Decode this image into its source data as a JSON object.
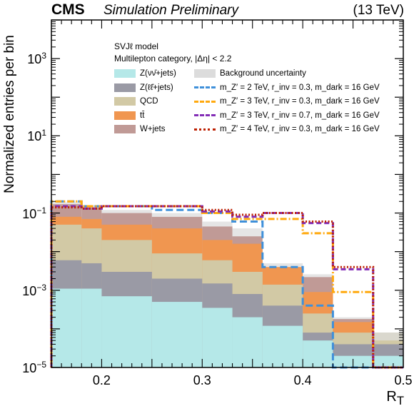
{
  "header": {
    "experiment": "CMS",
    "status": "Simulation Preliminary",
    "energy": "(13 TeV)"
  },
  "annotations": {
    "model": "SVJℓ model",
    "category": "Multilepton category,  |Δη| < 2.2"
  },
  "colors": {
    "znunu": "#b5e8e8",
    "zll": "#9a9aa5",
    "qcd": "#d2c9a5",
    "ttbar": "#f09650",
    "wjets": "#c09a96",
    "bkg_unc": "#dcdcdc",
    "sig1": "#3f90da",
    "sig2": "#ffa90e",
    "sig3": "#832db6",
    "sig4": "#bd1f01"
  },
  "chart_data": {
    "type": "bar",
    "stacked": true,
    "log_y": true,
    "grid": false,
    "title": "",
    "xlabel": "R_T",
    "ylabel": "Normalized entries per bin",
    "xlim": [
      0.15,
      0.5
    ],
    "ylim": [
      1e-05,
      10000
    ],
    "bin_edges": [
      0.15,
      0.18,
      0.2,
      0.25,
      0.3,
      0.33,
      0.36,
      0.4,
      0.43,
      0.47,
      0.5
    ],
    "x_ticks": [
      0.2,
      0.3,
      0.4,
      0.5
    ],
    "x_tick_labels": [
      "0.2",
      "0.3",
      "0.4",
      "0.5"
    ],
    "y_ticks": [
      1e-05,
      0.001,
      0.1,
      10,
      1000
    ],
    "y_tick_labels": [
      {
        "base": "10",
        "exp": "−5"
      },
      {
        "base": "10",
        "exp": "−3"
      },
      {
        "base": "10",
        "exp": "−1"
      },
      {
        "base": "10",
        "exp": "1"
      },
      {
        "base": "10",
        "exp": "3"
      }
    ],
    "legend_placement": "top-right, two columns",
    "background_series": [
      {
        "name": "Z(νν̄+jets)",
        "key": "znunu",
        "values": [
          0.0011,
          0.0011,
          0.0007,
          0.0005,
          0.00035,
          0.0002,
          0.00012,
          5e-05,
          2e-05,
          2e-05
        ]
      },
      {
        "name": "Z(ℓℓ̄+jets)",
        "key": "zll",
        "values": [
          0.006,
          0.005,
          0.003,
          0.002,
          0.0015,
          0.0008,
          0.0004,
          8e-05,
          4e-05,
          4e-05
        ]
      },
      {
        "name": "QCD",
        "key": "qcd",
        "values": [
          0.05,
          0.04,
          0.02,
          0.009,
          0.006,
          0.003,
          0.0014,
          0.00025,
          8e-05,
          8e-05
        ]
      },
      {
        "name": "tt̄",
        "key": "ttbar",
        "values": [
          0.08,
          0.07,
          0.05,
          0.04,
          0.02,
          0.016,
          0.004,
          0.0009,
          0.00015,
          3e-05
        ]
      },
      {
        "name": "W+jets",
        "key": "wjets",
        "values": [
          0.17,
          0.14,
          0.1,
          0.08,
          0.045,
          0.025,
          0.004,
          0.0022,
          0.00018,
          5e-05
        ]
      }
    ],
    "background_uncertainty": {
      "name": "Background uncertainty",
      "key": "bkg_unc",
      "values": [
        0.19,
        0.16,
        0.12,
        0.1,
        0.06,
        0.04,
        0.005,
        0.0026,
        0.0002,
        8e-05
      ]
    },
    "signal_series": [
      {
        "name": "m_Z′ = 2 TeV, r_inv = 0.3, m_dark = 16 GeV",
        "key": "sig1",
        "dash": "10,5",
        "values": [
          0.2,
          0.15,
          0.15,
          0.12,
          0.1,
          0.06,
          0.004,
          0.0004,
          1e-05,
          1e-05
        ]
      },
      {
        "name": "m_Z′ = 3 TeV, r_inv = 0.3, m_dark = 16 GeV",
        "key": "sig2",
        "dash": "9,3,2,3",
        "values": [
          0.2,
          0.15,
          0.15,
          0.15,
          0.1,
          0.07,
          0.07,
          0.03,
          0.0009,
          1e-05
        ]
      },
      {
        "name": "m_Z′ = 3 TeV, r_inv = 0.7, m_dark = 16 GeV",
        "key": "sig3",
        "dash": "7,4",
        "values": [
          0.15,
          0.13,
          0.15,
          0.15,
          0.11,
          0.08,
          0.1,
          0.055,
          0.0035,
          1e-05
        ]
      },
      {
        "name": "m_Z′ = 4 TeV, r_inv = 0.3, m_dark = 16 GeV",
        "key": "sig4",
        "dash": "2,2.5",
        "values": [
          0.14,
          0.13,
          0.15,
          0.15,
          0.12,
          0.09,
          0.1,
          0.06,
          0.004,
          1e-05
        ]
      }
    ]
  }
}
